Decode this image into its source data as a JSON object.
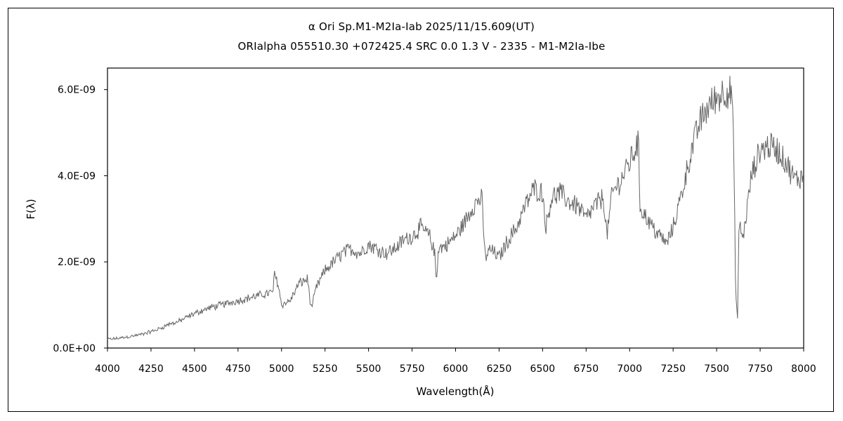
{
  "chart_data": {
    "type": "line",
    "title": "α Ori    Sp.M1-M2Ia-Iab   2025/11/15.609(UT)",
    "subtitle": "ORIalpha 055510.30 +072425.4 SRC 0.0 1.3 V - 2335 - M1-M2Ia-Ibe",
    "xlabel": "Wavelength(Å)",
    "ylabel": "F(λ)",
    "xlim": [
      4000,
      8000
    ],
    "ylim": [
      0,
      6.5e-09
    ],
    "x_ticks": [
      4000,
      4250,
      4500,
      4750,
      5000,
      5250,
      5500,
      5750,
      6000,
      6250,
      6500,
      6750,
      7000,
      7250,
      7500,
      7750,
      8000
    ],
    "x_tick_labels": [
      "4000",
      "4250",
      "4500",
      "4750",
      "5000",
      "5250",
      "5500",
      "5750",
      "6000",
      "6250",
      "6500",
      "6750",
      "7000",
      "7250",
      "7500",
      "7750",
      "8000"
    ],
    "y_ticks": [
      0,
      2e-09,
      4e-09,
      6e-09
    ],
    "y_tick_labels": [
      "0.0E+00",
      "2.0E-09",
      "4.0E-09",
      "6.0E-09"
    ],
    "grid": false,
    "legend": "none",
    "line_color": "#666666",
    "series": [
      {
        "x": [
          4000,
          4050,
          4100,
          4150,
          4200,
          4250,
          4300,
          4350,
          4400,
          4450,
          4500,
          4550,
          4600,
          4650,
          4700,
          4750,
          4800,
          4850,
          4900,
          4950,
          4960,
          4980,
          5000,
          5050,
          5100,
          5150,
          5170,
          5200,
          5250,
          5300,
          5350,
          5400,
          5450,
          5500,
          5550,
          5600,
          5650,
          5700,
          5750,
          5800,
          5850,
          5880,
          5890,
          5900,
          5950,
          6000,
          6050,
          6100,
          6150,
          6170,
          6200,
          6250,
          6300,
          6350,
          6400,
          6450,
          6500,
          6520,
          6550,
          6600,
          6650,
          6700,
          6750,
          6800,
          6850,
          6870,
          6900,
          6950,
          7000,
          7050,
          7060,
          7100,
          7150,
          7200,
          7210,
          7250,
          7300,
          7350,
          7400,
          7450,
          7500,
          7550,
          7590,
          7600,
          7610,
          7620,
          7630,
          7650,
          7700,
          7750,
          7800,
          7850,
          7900,
          7950,
          8000
        ],
        "y": [
          2e-10,
          2.2e-10,
          2.5e-10,
          2.8e-10,
          3.2e-10,
          3.8e-10,
          4.5e-10,
          5.5e-10,
          6e-10,
          7e-10,
          8e-10,
          8.8e-10,
          9.5e-10,
          1e-09,
          1.05e-09,
          1.1e-09,
          1.15e-09,
          1.2e-09,
          1.25e-09,
          1.3e-09,
          1.7e-09,
          1.5e-09,
          1e-09,
          1.1e-09,
          1.5e-09,
          1.6e-09,
          9e-10,
          1.4e-09,
          1.8e-09,
          2e-09,
          2.2e-09,
          2.3e-09,
          2.2e-09,
          2.4e-09,
          2.3e-09,
          2.2e-09,
          2.3e-09,
          2.5e-09,
          2.6e-09,
          2.8e-09,
          2.6e-09,
          2.2e-09,
          1.5e-09,
          2.3e-09,
          2.4e-09,
          2.6e-09,
          2.9e-09,
          3.3e-09,
          3.5e-09,
          2.1e-09,
          2.3e-09,
          2.1e-09,
          2.5e-09,
          2.8e-09,
          3.3e-09,
          3.7e-09,
          3.6e-09,
          2.8e-09,
          3.5e-09,
          3.6e-09,
          3.4e-09,
          3.3e-09,
          3e-09,
          3.3e-09,
          3.5e-09,
          2.6e-09,
          3.6e-09,
          3.9e-09,
          4.3e-09,
          4.8e-09,
          3.3e-09,
          3e-09,
          2.7e-09,
          2.5e-09,
          2.4e-09,
          2.8e-09,
          3.6e-09,
          4.5e-09,
          5.2e-09,
          5.6e-09,
          5.8e-09,
          6e-09,
          5.9e-09,
          4e-09,
          1.2e-09,
          7e-10,
          3e-09,
          2.5e-09,
          4e-09,
          4.6e-09,
          4.7e-09,
          4.6e-09,
          4.3e-09,
          3.9e-09,
          4e-09
        ]
      }
    ]
  }
}
